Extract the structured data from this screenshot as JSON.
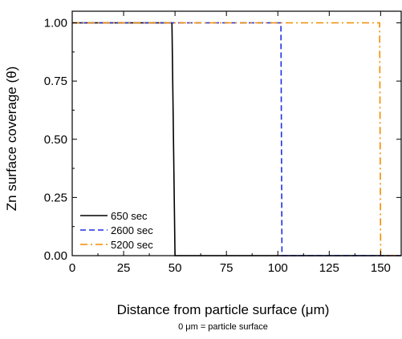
{
  "chart_data": {
    "type": "line",
    "xlabel": "Distance from particle surface (μm)",
    "ylabel": "Zn surface coverage (θ)",
    "note": "0 μm = particle surface",
    "xlim": [
      0,
      160
    ],
    "ylim": [
      0,
      1.05
    ],
    "x_ticks": [
      "0",
      "25",
      "50",
      "75",
      "100",
      "125",
      "150"
    ],
    "y_ticks": [
      "0.00",
      "0.25",
      "0.50",
      "0.75",
      "1.00"
    ],
    "grid": false,
    "legend_position": "bottom-left",
    "series": [
      {
        "name": "650 sec",
        "color": "#000000",
        "dash": "solid",
        "x": [
          0,
          48.5,
          50,
          160
        ],
        "y": [
          1.0,
          1.0,
          0.0,
          0.0
        ]
      },
      {
        "name": "2600 sec",
        "color": "#1f2fe0",
        "dash": "dashed",
        "x": [
          0,
          101.5,
          102,
          160
        ],
        "y": [
          1.0,
          1.0,
          0.0,
          0.0
        ]
      },
      {
        "name": "5200 sec",
        "color": "#f28c00",
        "dash": "dashdot",
        "x": [
          0,
          149.5,
          150,
          160
        ],
        "y": [
          1.0,
          1.0,
          0.0,
          0.0
        ]
      }
    ]
  }
}
